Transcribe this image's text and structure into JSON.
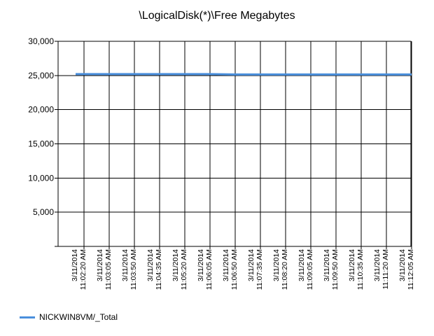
{
  "chart_data": {
    "type": "line",
    "title": "\\LogicalDisk(*)\\Free Megabytes",
    "xlabel": "",
    "ylabel": "",
    "ylim": [
      0,
      30000
    ],
    "y_ticks": [
      {
        "value": 30000,
        "label": "30,000"
      },
      {
        "value": 25000,
        "label": "25,000"
      },
      {
        "value": 20000,
        "label": "20,000"
      },
      {
        "value": 15000,
        "label": "15,000"
      },
      {
        "value": 10000,
        "label": "10,000"
      },
      {
        "value": 5000,
        "label": "5,000"
      },
      {
        "value": 0,
        "label": ""
      }
    ],
    "x_ticks": [
      {
        "date": "3/11/2014",
        "time": "11:02:20 AM"
      },
      {
        "date": "3/11/2014",
        "time": "11:03:05 AM"
      },
      {
        "date": "3/11/2014",
        "time": "11:03:50 AM"
      },
      {
        "date": "3/11/2014",
        "time": "11:04:35 AM"
      },
      {
        "date": "3/11/2014",
        "time": "11:05:20 AM"
      },
      {
        "date": "3/11/2014",
        "time": "11:06:05 AM"
      },
      {
        "date": "3/11/2014",
        "time": "11:06:50 AM"
      },
      {
        "date": "3/11/2014",
        "time": "11:07:35 AM"
      },
      {
        "date": "3/11/2014",
        "time": "11:08:20 AM"
      },
      {
        "date": "3/11/2014",
        "time": "11:09:05 AM"
      },
      {
        "date": "3/11/2014",
        "time": "11:09:50 AM"
      },
      {
        "date": "3/11/2014",
        "time": "11:10:35 AM"
      },
      {
        "date": "3/11/2014",
        "time": "11:11:20 AM"
      },
      {
        "date": "3/11/2014",
        "time": "11:12:05 AM"
      }
    ],
    "series": [
      {
        "name": "NICKWIN8VM/_Total",
        "color": "#4a8fdc",
        "x": [
          "11:02:05 AM",
          "11:02:20 AM",
          "11:03:05 AM",
          "11:03:50 AM",
          "11:04:35 AM",
          "11:05:20 AM",
          "11:06:05 AM",
          "11:06:50 AM",
          "11:07:35 AM",
          "11:08:20 AM",
          "11:09:05 AM",
          "11:09:50 AM",
          "11:10:35 AM",
          "11:11:20 AM",
          "11:12:05 AM"
        ],
        "values": [
          25200,
          25200,
          25200,
          25200,
          25200,
          25200,
          25200,
          25150,
          25150,
          25150,
          25150,
          25150,
          25150,
          25150,
          25150
        ]
      }
    ],
    "grid": true,
    "legend_position": "bottom-left"
  }
}
